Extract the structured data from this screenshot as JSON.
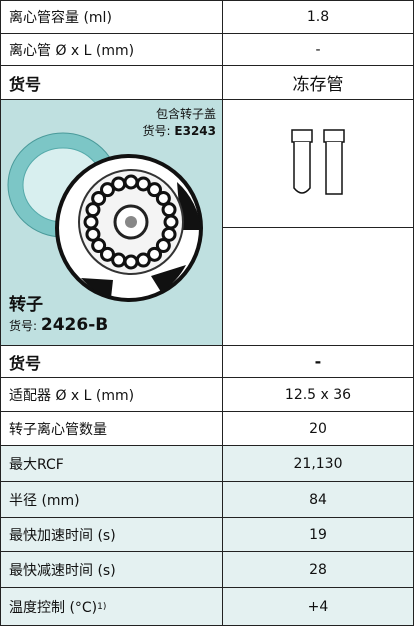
{
  "top_rows": [
    {
      "label": "离心管容量 (ml)",
      "value": "1.8"
    },
    {
      "label": "离心管 Ø x L (mm)",
      "value": "-"
    }
  ],
  "header": {
    "label": "货号",
    "value": "冻存管"
  },
  "rotor_image": {
    "lid_note": "包含转子盖",
    "lid_number_label": "货号:",
    "lid_number": "E3243",
    "rotor_label": "转子",
    "rotor_number_label": "货号:",
    "rotor_number": "2426-B"
  },
  "spec_header": {
    "label": "货号",
    "value": "-"
  },
  "rows": [
    {
      "label": "适配器 Ø x L (mm)",
      "value": "12.5 x 36"
    },
    {
      "label": "转子离心管数量",
      "value": "20"
    },
    {
      "label": "最大RCF",
      "value": "21,130"
    },
    {
      "label": "半径 (mm)",
      "value": "84"
    },
    {
      "label": "最快加速时间 (s)",
      "value": "19"
    },
    {
      "label": "最快减速时间 (s)",
      "value": "28"
    },
    {
      "label": "温度控制 (°C)",
      "footnote": "1)",
      "value": "+4"
    }
  ]
}
